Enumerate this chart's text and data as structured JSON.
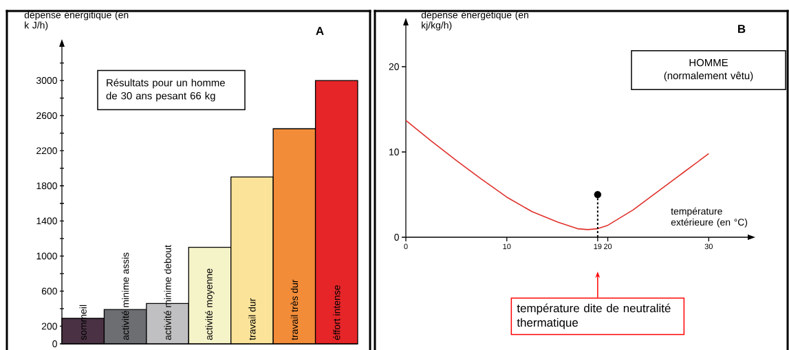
{
  "chart_data": [
    {
      "type": "bar",
      "title": "A",
      "ylabel": "dépense énergitique (en k J/h)",
      "annotations": [
        "Résultats pour un homme de 30 ans pesant 66 kg"
      ],
      "categories": [
        "sommeil",
        "activité minime assis",
        "activité minime debout",
        "activité moyenne",
        "travail dur",
        "travail très dur",
        "éffort intense"
      ],
      "values": [
        290,
        390,
        460,
        1100,
        1900,
        2450,
        3000
      ],
      "colors": [
        "#4a3244",
        "#6d6e72",
        "#c0c0c2",
        "#f5f3c8",
        "#fbe39a",
        "#f28c38",
        "#e52528"
      ],
      "ylim": [
        0,
        3400
      ],
      "yticks": [
        0,
        200,
        {
          "value": 400,
          "label": null
        },
        600,
        {
          "value": 800,
          "label": null
        },
        1000,
        {
          "value": 1200,
          "label": null
        },
        1400,
        {
          "value": 1600,
          "label": null
        },
        1800,
        {
          "value": 2000,
          "label": null
        },
        2200,
        {
          "value": 2400,
          "label": null
        },
        2600,
        {
          "value": 2800,
          "label": null
        },
        3000,
        {
          "value": 3200,
          "label": null
        }
      ]
    },
    {
      "type": "line",
      "title": "B",
      "ylabel": "dépense énergétique (en kj/kg/h)",
      "xlabel": "température extérieure (en °C)",
      "annotations": [
        "HOMME",
        "(normalement vêtu)",
        "température dite de neutralité thermatique"
      ],
      "xlim": [
        0,
        34
      ],
      "ylim": [
        0,
        25
      ],
      "xticks": [
        0,
        10,
        19,
        20,
        30
      ],
      "yticks": [
        0,
        10,
        20
      ],
      "series": [
        {
          "type": "line",
          "color": "#e0302a",
          "x": [
            0,
            2.5,
            5,
            7.5,
            10,
            12.5,
            15,
            17,
            18,
            19,
            20,
            22.5,
            25,
            27.5,
            30
          ],
          "values": [
            13.7,
            11.3,
            9.0,
            6.8,
            4.7,
            3.0,
            1.8,
            1.0,
            0.9,
            1.0,
            1.4,
            3.2,
            5.4,
            7.6,
            9.8
          ]
        },
        {
          "type": "lollipop",
          "color": "#000000",
          "line_style": "dashed",
          "x": [
            19
          ],
          "values": [
            5
          ]
        }
      ]
    }
  ]
}
